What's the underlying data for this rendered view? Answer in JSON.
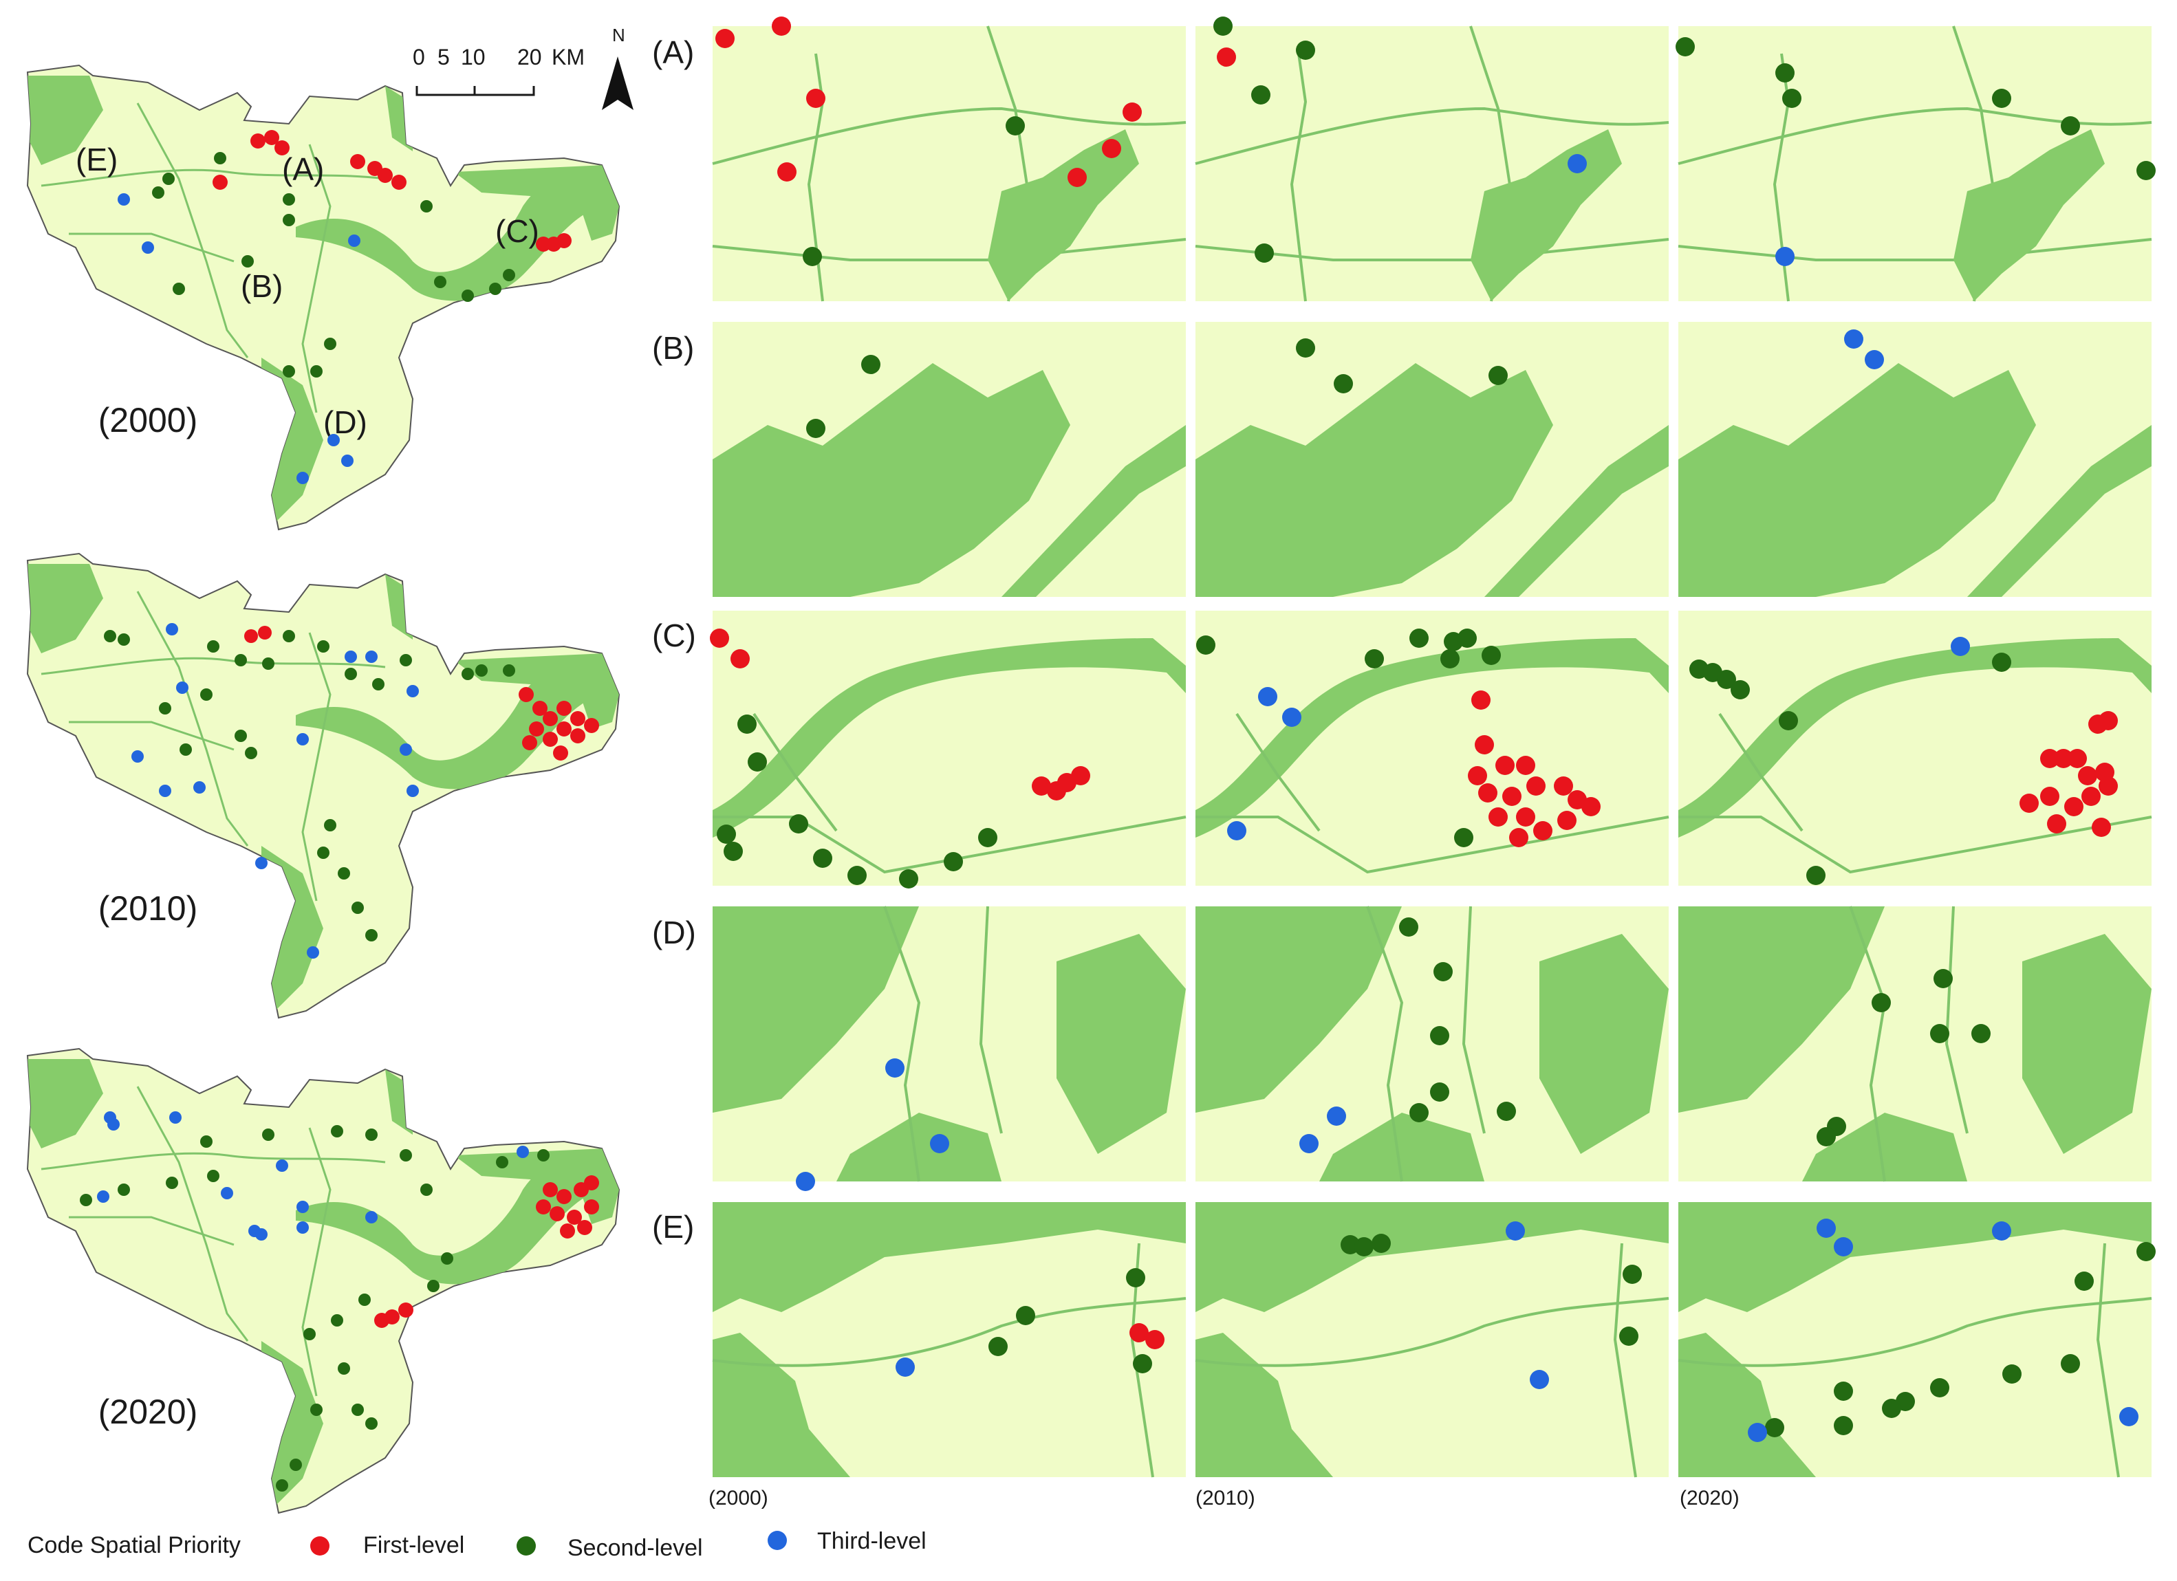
{
  "colors": {
    "land": "#f0fcc8",
    "green": "#86cc6a",
    "road": "#7fc46a",
    "first": "#e8141c",
    "second": "#236a12",
    "third": "#2266dd"
  },
  "overview": {
    "scale_ticks": [
      "0",
      "5",
      "10",
      "20"
    ],
    "scale_unit": "KM",
    "north": "N",
    "maps": [
      {
        "year_label": "(2000)",
        "area_labels": [
          "(A)",
          "(B)",
          "(C)",
          "(D)",
          "(E)"
        ]
      },
      {
        "year_label": "(2010)"
      },
      {
        "year_label": "(2020)"
      }
    ]
  },
  "panels": {
    "row_labels": [
      "(A)",
      "(B)",
      "(C)",
      "(D)",
      "(E)"
    ],
    "column_years": [
      "(2000)",
      "(2010)",
      "(2020)"
    ]
  },
  "legend": {
    "title": "Code Spatial Priority",
    "items": [
      {
        "label": "First-level",
        "color_key": "first"
      },
      {
        "label": "Second-level",
        "color_key": "second"
      },
      {
        "label": "Third-level",
        "color_key": "third"
      }
    ]
  }
}
